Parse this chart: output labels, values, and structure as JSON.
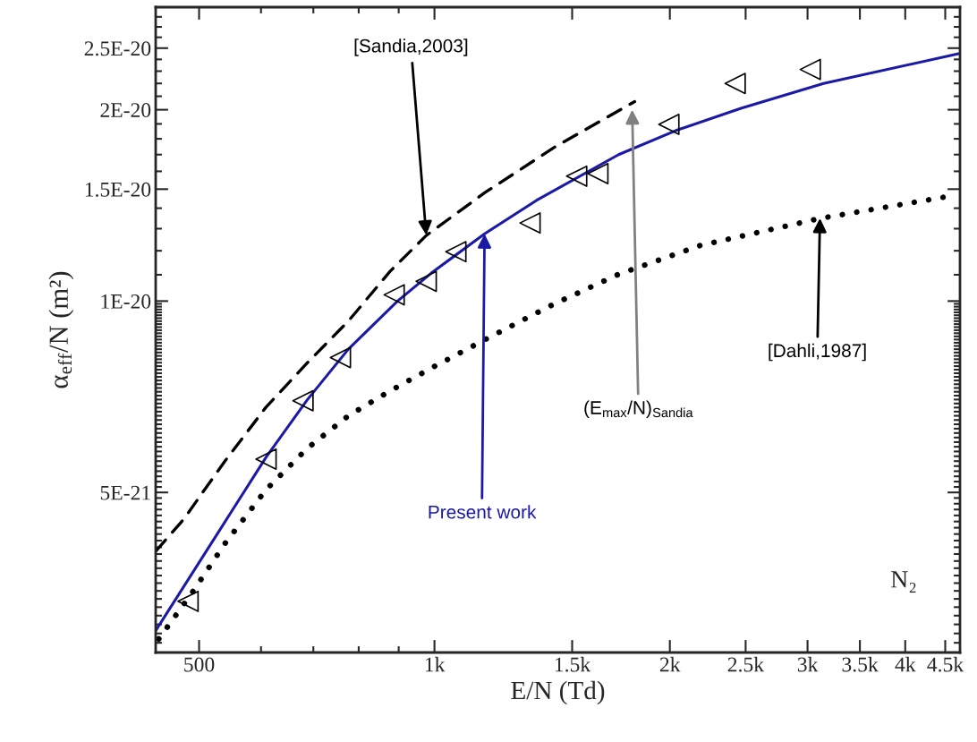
{
  "chart_data": {
    "type": "line",
    "xlabel": "E/N (Td)",
    "ylabel": "α$_{eff}$/N (m²)",
    "log": "xy",
    "xlim": [
      440,
      4700
    ],
    "ylim": [
      2.8e-21,
      2.9e-20
    ],
    "xticks": [
      500,
      {
        "value": 1000,
        "label": "1k"
      },
      {
        "value": 1500,
        "label": "1.5k"
      },
      {
        "value": 2000,
        "label": "2k"
      },
      {
        "value": 2500,
        "label": "2.5k"
      },
      {
        "value": 3000,
        "label": "3k"
      },
      {
        "value": 3500,
        "label": "3.5k"
      },
      {
        "value": 4000,
        "label": "4k"
      },
      {
        "value": 4500,
        "label": "4.5k"
      }
    ],
    "yticks": [
      {
        "value": 5e-21,
        "label": "5E-21"
      },
      {
        "value": 1e-20,
        "label": "1E-20"
      },
      {
        "value": 1.5e-20,
        "label": "1.5E-20"
      },
      {
        "value": 2e-20,
        "label": "2E-20"
      },
      {
        "value": 2.5e-20,
        "label": "2.5E-20"
      }
    ],
    "series": [
      {
        "type": "line",
        "color": "#1a1aa6",
        "line_style": "solid",
        "x": [
          440,
          609,
          688,
          776,
          897,
          990,
          1159,
          1350,
          1720,
          2036,
          2466,
          3145,
          4680
        ],
        "values": [
          3.03e-21,
          5.68e-21,
          7e-21,
          8.4e-21,
          1e-20,
          1.106e-20,
          1.276e-20,
          1.44e-20,
          1.7e-20,
          1.855e-20,
          2.01e-20,
          2.2e-20,
          2.45e-20
        ]
      },
      {
        "type": "line",
        "color": "#000000",
        "line_style": "dashed",
        "x": [
          440,
          478,
          540,
          609,
          688,
          776,
          877,
          976,
          1159,
          1423,
          1803
        ],
        "values": [
          4.04e-21,
          4.54e-21,
          5.61e-21,
          6.81e-21,
          8e-21,
          9.3e-21,
          1.113e-20,
          1.268e-20,
          1.48e-20,
          1.745e-20,
          2.06e-20
        ]
      },
      {
        "type": "line",
        "color": "#000000",
        "line_style": "dotted",
        "x": [
          444,
          490,
          540,
          609,
          688,
          776,
          877,
          990,
          1159,
          1423,
          1720,
          2186,
          3112,
          4570
        ],
        "values": [
          2.94e-21,
          3.48e-21,
          4.16e-21,
          5.05e-21,
          5.87e-21,
          6.6e-21,
          7.22e-21,
          7.84e-21,
          8.69e-21,
          9.9e-21,
          1.102e-20,
          1.223e-20,
          1.349e-20,
          1.463e-20
        ]
      },
      {
        "type": "scatter",
        "color": "#000000",
        "marker": "triangle",
        "x": [
          484,
          609,
          679,
          758,
          888,
          976,
          1065,
          1325,
          1520,
          1618,
          1994,
          2424,
          3024
        ],
        "values": [
          3.37e-21,
          5.64e-21,
          6.97e-21,
          8.15e-21,
          1.023e-20,
          1.074e-20,
          1.196e-20,
          1.327e-20,
          1.572e-20,
          1.587e-20,
          1.897e-20,
          2.2e-20,
          2.314e-20
        ]
      }
    ],
    "annotations": [
      {
        "text": "[Sandia,2003]",
        "x": 976,
        "y": 1.27e-20
      },
      {
        "text": "Present work",
        "x": 1159,
        "y": 1.276e-20
      },
      {
        "text": "(E$_{max}$/N)$_{Sandia}$",
        "x": 1790,
        "y": 2e-20
      },
      {
        "text": "[Dahli,1987]",
        "x": 3112,
        "y": 1.35e-20
      },
      "N₂"
    ]
  }
}
